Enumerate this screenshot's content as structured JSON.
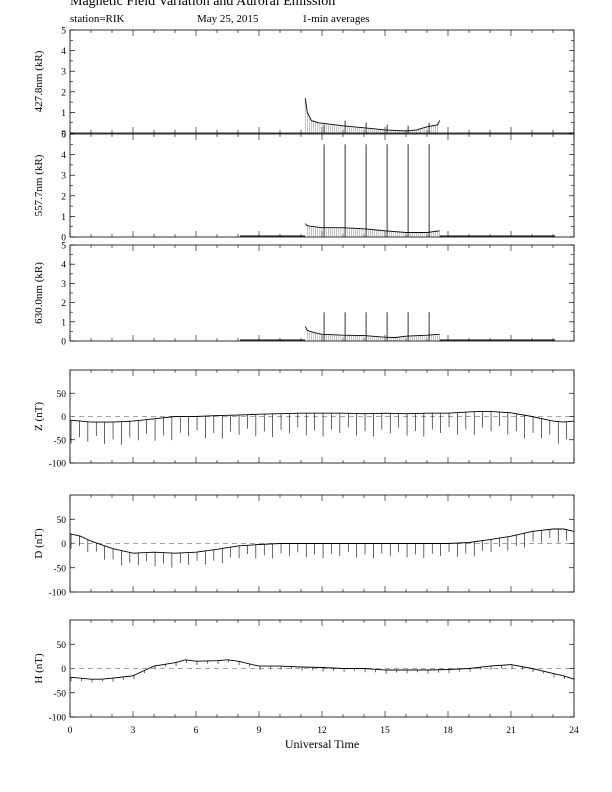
{
  "header": {
    "title": "Magnetic Field Variation and Auroral Emission",
    "station": "station=RIK",
    "date": "May 25, 2015",
    "averaging": "1-min averages"
  },
  "chart_data": {
    "type": "line",
    "xlabel": "Universal Time",
    "xlim": [
      0,
      24
    ],
    "xticks": [
      0,
      3,
      6,
      9,
      12,
      15,
      18,
      21,
      24
    ],
    "panels": [
      {
        "id": "p4278",
        "ylabel": "427.8nm (kR)",
        "ylim": [
          0,
          5
        ],
        "yticks": [
          0,
          1,
          2,
          3,
          4,
          5
        ],
        "zero_line": false,
        "data_range": [
          11.2,
          17.6
        ],
        "series": [
          {
            "x": [
              11.2,
              11.3,
              11.5,
              11.8,
              12.2,
              13,
              14,
              15,
              16,
              16.5,
              17,
              17.5,
              17.6
            ],
            "y": [
              1.7,
              1.0,
              0.6,
              0.5,
              0.45,
              0.35,
              0.25,
              0.15,
              0.1,
              0.15,
              0.3,
              0.4,
              0.6
            ]
          }
        ],
        "spikes": [
          {
            "x": 12.1,
            "y": 0.4
          },
          {
            "x": 13.1,
            "y": 0.6
          },
          {
            "x": 14.1,
            "y": 0.5
          },
          {
            "x": 15.1,
            "y": 0.4
          },
          {
            "x": 16.1,
            "y": 0.35
          },
          {
            "x": 17.1,
            "y": 0.5
          }
        ]
      },
      {
        "id": "p5577",
        "ylabel": "557.7nm (kR)",
        "ylim": [
          0,
          5
        ],
        "yticks": [
          0,
          1,
          2,
          3,
          4,
          5
        ],
        "zero_line": false,
        "data_range": [
          8.1,
          23.1
        ],
        "series": [
          {
            "x": [
              8.1,
              11.2
            ],
            "y": [
              0.05,
              0.05
            ]
          },
          {
            "x": [
              11.2,
              11.3,
              11.6,
              12,
              13,
              14,
              15,
              16,
              17,
              17.6
            ],
            "y": [
              0.65,
              0.55,
              0.5,
              0.45,
              0.45,
              0.4,
              0.3,
              0.22,
              0.22,
              0.3
            ]
          },
          {
            "x": [
              17.6,
              23.1
            ],
            "y": [
              0.05,
              0.05
            ]
          }
        ],
        "spikes": [
          {
            "x": 12.1,
            "y": 4.5
          },
          {
            "x": 13.1,
            "y": 4.5
          },
          {
            "x": 14.1,
            "y": 4.5
          },
          {
            "x": 15.1,
            "y": 4.5
          },
          {
            "x": 16.1,
            "y": 4.5
          },
          {
            "x": 17.1,
            "y": 4.5
          }
        ]
      },
      {
        "id": "p6300",
        "ylabel": "630.0nm (kR)",
        "ylim": [
          0,
          5
        ],
        "yticks": [
          0,
          1,
          2,
          3,
          4,
          5
        ],
        "zero_line": false,
        "data_range": [
          8.1,
          23.1
        ],
        "series": [
          {
            "x": [
              8.1,
              11.2
            ],
            "y": [
              0.05,
              0.05
            ]
          },
          {
            "x": [
              11.2,
              11.3,
              11.6,
              12,
              13,
              14,
              15,
              15.5,
              16,
              17,
              17.6
            ],
            "y": [
              0.75,
              0.55,
              0.45,
              0.35,
              0.3,
              0.28,
              0.2,
              0.18,
              0.25,
              0.3,
              0.35
            ]
          },
          {
            "x": [
              17.6,
              23.1
            ],
            "y": [
              0.05,
              0.05
            ]
          }
        ],
        "spikes": [
          {
            "x": 12.1,
            "y": 1.5
          },
          {
            "x": 13.1,
            "y": 1.5
          },
          {
            "x": 14.1,
            "y": 1.5
          },
          {
            "x": 15.1,
            "y": 1.5
          },
          {
            "x": 16.1,
            "y": 1.5
          },
          {
            "x": 17.1,
            "y": 1.5
          }
        ]
      },
      {
        "id": "pz",
        "ylabel": "Z (nT)",
        "ylim": [
          -100,
          100
        ],
        "yticks": [
          -100,
          -50,
          0,
          50
        ],
        "zero_line": true,
        "data_range": [
          0,
          24
        ],
        "series": [
          {
            "x": [
              0,
              0.5,
              1,
              2,
              3,
              4,
              5,
              6,
              7,
              8,
              9,
              10,
              11,
              12,
              13,
              14,
              15,
              16,
              17,
              18,
              19,
              19.5,
              20,
              21,
              22,
              23,
              23.5,
              24
            ],
            "y": [
              -8,
              -10,
              -12,
              -12,
              -10,
              -5,
              0,
              0,
              2,
              3,
              5,
              6,
              7,
              7,
              7,
              6,
              7,
              6,
              7,
              7,
              10,
              11,
              11,
              8,
              0,
              -10,
              -12,
              -10
            ]
          }
        ],
        "spike_interval": 0.4,
        "spike_depth": -50
      },
      {
        "id": "pd",
        "ylabel": "D (nT)",
        "ylim": [
          -100,
          100
        ],
        "yticks": [
          -100,
          -50,
          0,
          50
        ],
        "zero_line": true,
        "data_range": [
          0,
          24
        ],
        "series": [
          {
            "x": [
              0,
              0.5,
              1,
              2,
              3,
              4,
              5,
              6,
              7,
              8,
              9,
              10,
              11,
              12,
              13,
              14,
              15,
              16,
              17,
              18,
              19,
              20,
              21,
              22,
              23,
              23.5,
              24
            ],
            "y": [
              20,
              15,
              5,
              -10,
              -20,
              -18,
              -20,
              -18,
              -12,
              -5,
              -2,
              0,
              0,
              0,
              0,
              0,
              0,
              0,
              0,
              0,
              2,
              8,
              15,
              25,
              30,
              30,
              25
            ]
          }
        ],
        "spike_interval": 0.4,
        "spike_depth": -30
      },
      {
        "id": "ph",
        "ylabel": "H (nT)",
        "ylim": [
          -100,
          100
        ],
        "yticks": [
          -100,
          -50,
          0,
          50
        ],
        "zero_line": true,
        "data_range": [
          0,
          24
        ],
        "series": [
          {
            "x": [
              0,
              0.5,
              1,
              1.5,
              2,
              3,
              3.5,
              4,
              5,
              5.5,
              6,
              7,
              7.5,
              8,
              9,
              10,
              11,
              12,
              13,
              14,
              15,
              16,
              17,
              18,
              19,
              20,
              21,
              22,
              23,
              23.5,
              24
            ],
            "y": [
              -18,
              -20,
              -22,
              -22,
              -20,
              -15,
              -5,
              5,
              12,
              18,
              15,
              16,
              18,
              15,
              5,
              5,
              3,
              2,
              0,
              0,
              -3,
              -3,
              -3,
              -2,
              0,
              5,
              8,
              0,
              -10,
              -15,
              -22
            ]
          }
        ],
        "spike_interval": 0.5,
        "spike_depth": -8
      }
    ]
  }
}
